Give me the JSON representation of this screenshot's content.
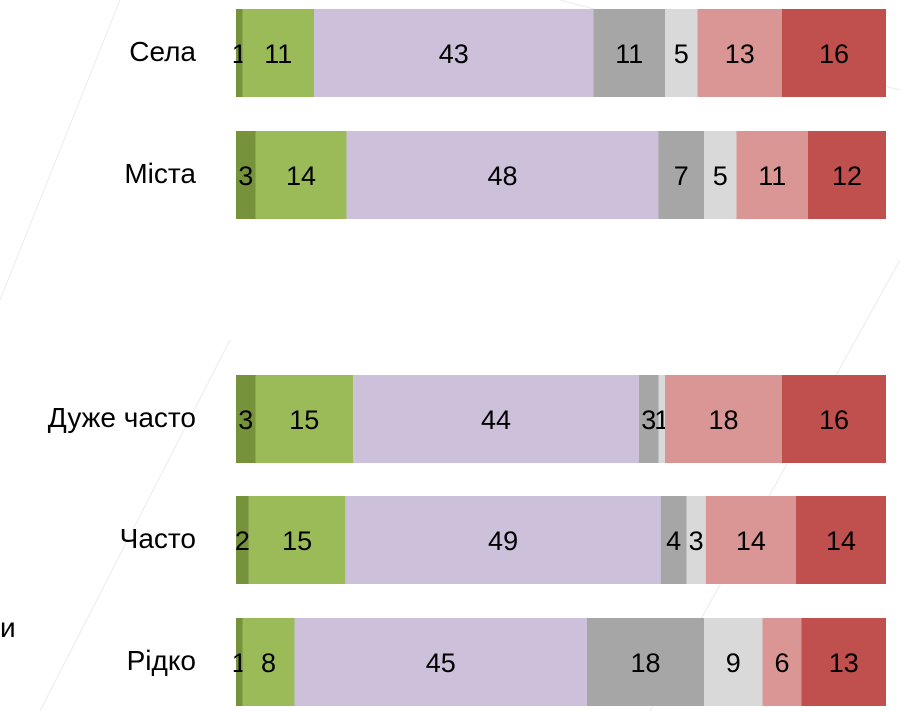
{
  "chart_data": {
    "type": "bar",
    "orientation": "horizontal",
    "stacked": true,
    "scale_max": 100,
    "categories": [
      "Села",
      "Міста",
      "Дуже часто",
      "Часто",
      "Рідко"
    ],
    "groups": [
      [
        "Села",
        "Міста"
      ],
      [
        "Дуже часто",
        "Часто",
        "Рідко"
      ]
    ],
    "series": [
      {
        "color": "#76933c",
        "values": [
          1,
          3,
          3,
          2,
          1
        ]
      },
      {
        "color": "#9bbb59",
        "values": [
          11,
          14,
          15,
          15,
          8
        ]
      },
      {
        "color": "#ccc0da",
        "values": [
          43,
          48,
          44,
          49,
          45
        ]
      },
      {
        "color": "#a6a6a6",
        "values": [
          11,
          7,
          3,
          4,
          18
        ]
      },
      {
        "color": "#d9d9d9",
        "values": [
          5,
          5,
          1,
          3,
          9
        ]
      },
      {
        "color": "#da9694",
        "values": [
          13,
          11,
          18,
          14,
          6
        ]
      },
      {
        "color": "#c0504d",
        "values": [
          16,
          12,
          16,
          14,
          13
        ]
      }
    ],
    "grid": false,
    "legend": "none"
  },
  "edge_text": "и"
}
